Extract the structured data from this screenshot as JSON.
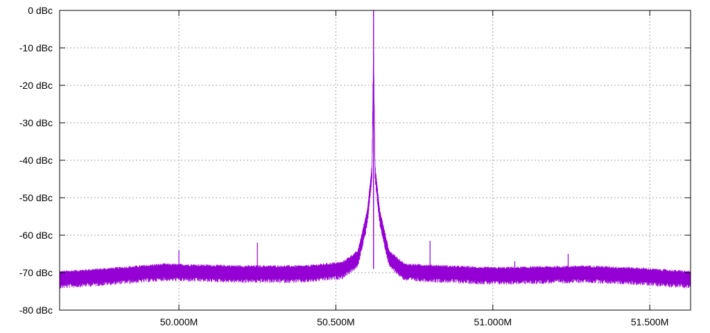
{
  "chart_data": {
    "type": "line",
    "title": "",
    "xlabel": "",
    "ylabel": "",
    "xlim": [
      49620000,
      51630000
    ],
    "ylim": [
      -80,
      0
    ],
    "grid": true,
    "x_ticks": [
      {
        "value": 50000000,
        "label": "50.000M"
      },
      {
        "value": 50500000,
        "label": "50.500M"
      },
      {
        "value": 51000000,
        "label": "51.000M"
      },
      {
        "value": 51500000,
        "label": "51.500M"
      }
    ],
    "y_ticks": [
      {
        "value": 0,
        "label": "0 dBc"
      },
      {
        "value": -10,
        "label": "-10 dBc"
      },
      {
        "value": -20,
        "label": "-20 dBc"
      },
      {
        "value": -30,
        "label": "-30 dBc"
      },
      {
        "value": -40,
        "label": "-40 dBc"
      },
      {
        "value": -50,
        "label": "-50 dBc"
      },
      {
        "value": -60,
        "label": "-60 dBc"
      },
      {
        "value": -70,
        "label": "-70 dBc"
      },
      {
        "value": -80,
        "label": "-80 dBc"
      }
    ],
    "series": [
      {
        "color": "#9400d3",
        "carrier": {
          "x": 50620000,
          "y": 0
        },
        "noise_floor": [
          {
            "x": 49620000,
            "y": -71.5
          },
          {
            "x": 49800000,
            "y": -70.5
          },
          {
            "x": 49950000,
            "y": -69.5
          },
          {
            "x": 50200000,
            "y": -70.0
          },
          {
            "x": 50400000,
            "y": -70.0
          },
          {
            "x": 50520000,
            "y": -69.0
          },
          {
            "x": 50570000,
            "y": -66.0
          },
          {
            "x": 50600000,
            "y": -55.0
          },
          {
            "x": 50610000,
            "y": -47.0
          },
          {
            "x": 50615000,
            "y": -43.0
          },
          {
            "x": 50620000,
            "y": -10.0
          },
          {
            "x": 50625000,
            "y": -43.0
          },
          {
            "x": 50630000,
            "y": -47.0
          },
          {
            "x": 50640000,
            "y": -55.0
          },
          {
            "x": 50670000,
            "y": -66.0
          },
          {
            "x": 50720000,
            "y": -69.5
          },
          {
            "x": 51000000,
            "y": -70.5
          },
          {
            "x": 51300000,
            "y": -70.0
          },
          {
            "x": 51450000,
            "y": -70.5
          },
          {
            "x": 51630000,
            "y": -71.5
          }
        ],
        "spurs": [
          {
            "x": 50000000,
            "y": -64
          },
          {
            "x": 50250000,
            "y": -62
          },
          {
            "x": 50800000,
            "y": -61.5
          },
          {
            "x": 51070000,
            "y": -67
          },
          {
            "x": 51240000,
            "y": -65
          }
        ]
      }
    ]
  }
}
